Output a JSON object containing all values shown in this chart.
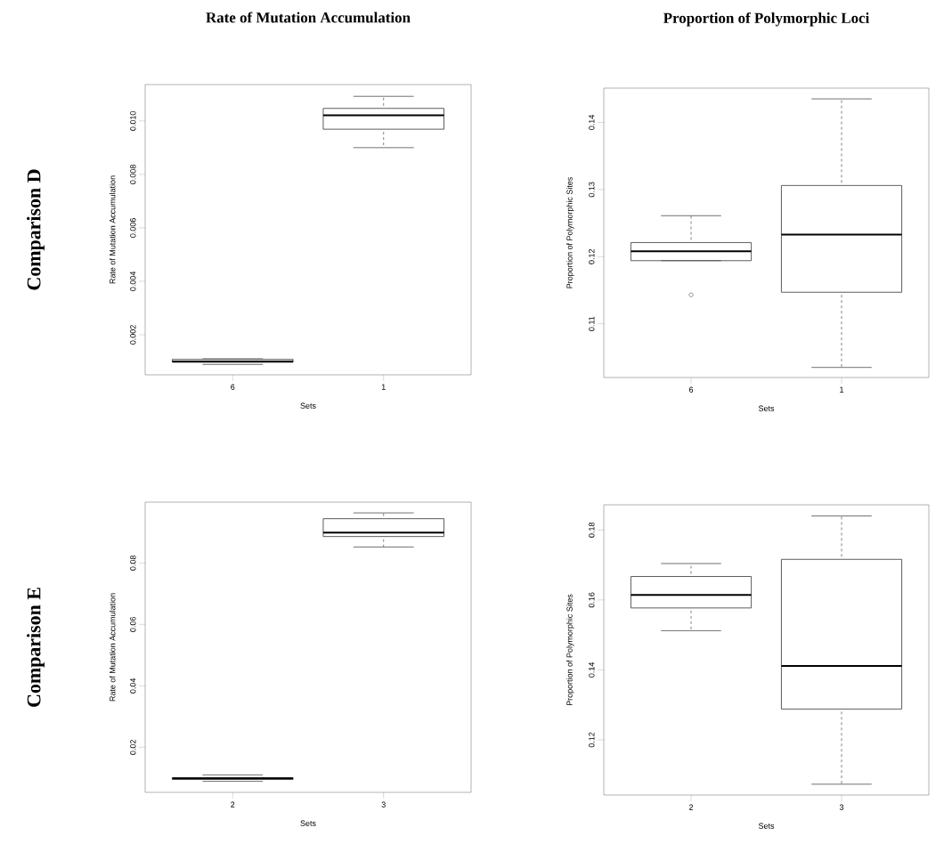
{
  "chart_data": [
    {
      "type": "box",
      "title": "Rate of Mutation Accumulation",
      "annotations": [
        "Comparison D"
      ],
      "xlabel": "Sets",
      "ylabel": "Rate of Mutation Accumulation",
      "categories": [
        "6",
        "1"
      ],
      "boxes": [
        {
          "low": 0.00089,
          "q1": 0.00097,
          "median": 0.001,
          "q3": 0.00108,
          "high": 0.0011
        },
        {
          "low": 0.009,
          "q1": 0.00969,
          "median": 0.01021,
          "q3": 0.01047,
          "high": 0.01092
        }
      ],
      "ylim": [
        0.0005,
        0.01136
      ],
      "yticks": [
        0.002,
        0.004,
        0.006,
        0.008,
        {
          "value": 0.01,
          "label": "0.010"
        }
      ]
    },
    {
      "type": "box",
      "title": "Proportion of Polymorphic Loci",
      "xlabel": "Sets",
      "ylabel": "Proportion of Polymorphic Sites",
      "categories": [
        "6",
        "1"
      ],
      "marker": "circle",
      "boxes": [
        {
          "low": 0.1194,
          "q1": 0.1194,
          "median": 0.1208,
          "q3": 0.1221,
          "high": 0.1261,
          "outliers": [
            0.1143
          ]
        },
        {
          "low": 0.1035,
          "q1": 0.1147,
          "median": 0.1233,
          "q3": 0.1306,
          "high": 0.1435
        }
      ],
      "ylim": [
        0.102,
        0.1451
      ],
      "yticks": [
        0.11,
        0.12,
        0.13,
        0.14
      ]
    },
    {
      "type": "box",
      "annotations": [
        "Comparison E"
      ],
      "xlabel": "Sets",
      "ylabel": "Rate of Mutation Accumulation",
      "categories": [
        "2",
        "3"
      ],
      "boxes": [
        {
          "low": 0.0089,
          "q1": 0.0095,
          "median": 0.0099,
          "q3": 0.0101,
          "high": 0.011
        },
        {
          "low": 0.0852,
          "q1": 0.0886,
          "median": 0.0899,
          "q3": 0.0944,
          "high": 0.0963
        }
      ],
      "ylim": [
        0.0053,
        0.0998
      ],
      "yticks": [
        0.02,
        0.04,
        0.06,
        0.08
      ]
    },
    {
      "type": "box",
      "xlabel": "Sets",
      "ylabel": "Proportion of Polymorphic Sites",
      "categories": [
        "2",
        "3"
      ],
      "boxes": [
        {
          "low": 0.1512,
          "q1": 0.1577,
          "median": 0.1614,
          "q3": 0.1667,
          "high": 0.1704
        },
        {
          "low": 0.1073,
          "q1": 0.1288,
          "median": 0.1411,
          "q3": 0.1716,
          "high": 0.184
        }
      ],
      "ylim": [
        0.1042,
        0.1872
      ],
      "yticks": [
        0.12,
        0.14,
        0.16,
        0.18
      ]
    }
  ]
}
